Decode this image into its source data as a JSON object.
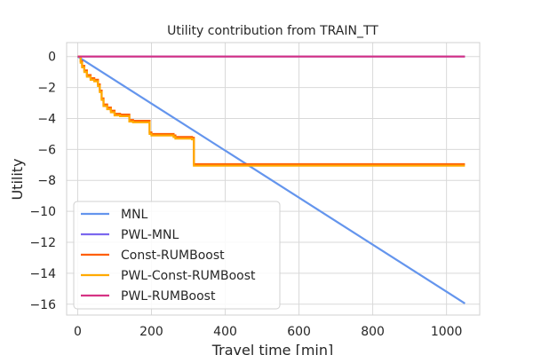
{
  "chart_data": {
    "type": "line",
    "title": "Utility contribution from TRAIN_TT",
    "xlabel": "Travel time [min]",
    "ylabel": "Utility",
    "xlim": [
      -30,
      1090
    ],
    "ylim": [
      -16.7,
      0.9
    ],
    "xticks": [
      0,
      200,
      400,
      600,
      800,
      1000
    ],
    "yticks": [
      0,
      -2,
      -4,
      -6,
      -8,
      -10,
      -12,
      -14,
      -16
    ],
    "xtick_labels": [
      "0",
      "200",
      "400",
      "600",
      "800",
      "1000"
    ],
    "ytick_labels": [
      "0",
      "−2",
      "−4",
      "−6",
      "−8",
      "−10",
      "−12",
      "−14",
      "−16"
    ],
    "grid": true,
    "legend_position": "bottom-left",
    "series": [
      {
        "name": "MNL",
        "color": "#6495ED",
        "step": false,
        "x": [
          0,
          1050
        ],
        "y": [
          0,
          -15.95
        ]
      },
      {
        "name": "PWL-MNL",
        "color": "#7B68EE",
        "step": false,
        "x": [
          0,
          1050
        ],
        "y": [
          0,
          0
        ]
      },
      {
        "name": "Const-RUMBoost",
        "color": "#FF5F00",
        "step": true,
        "x": [
          0,
          8,
          12,
          18,
          25,
          35,
          45,
          55,
          60,
          65,
          70,
          80,
          90,
          100,
          115,
          140,
          150,
          195,
          200,
          260,
          265,
          310,
          315,
          1050
        ],
        "y": [
          0,
          -0.3,
          -0.6,
          -0.9,
          -1.2,
          -1.4,
          -1.5,
          -1.8,
          -2.2,
          -2.7,
          -3.1,
          -3.3,
          -3.5,
          -3.7,
          -3.75,
          -4.1,
          -4.15,
          -4.9,
          -5.0,
          -5.1,
          -5.2,
          -5.25,
          -6.95,
          -6.95
        ]
      },
      {
        "name": "PWL-Const-RUMBoost",
        "color": "#FFAA00",
        "step": true,
        "x": [
          0,
          8,
          12,
          18,
          25,
          35,
          45,
          55,
          60,
          65,
          70,
          80,
          90,
          100,
          115,
          140,
          150,
          195,
          200,
          260,
          265,
          310,
          315,
          1050
        ],
        "y": [
          0,
          -0.4,
          -0.7,
          -1.0,
          -1.3,
          -1.5,
          -1.6,
          -1.9,
          -2.3,
          -2.8,
          -3.2,
          -3.4,
          -3.6,
          -3.8,
          -3.85,
          -4.2,
          -4.25,
          -5.0,
          -5.1,
          -5.2,
          -5.3,
          -5.35,
          -7.05,
          -7.05
        ]
      },
      {
        "name": "PWL-RUMBoost",
        "color": "#D63384",
        "step": false,
        "x": [
          0,
          1050
        ],
        "y": [
          0,
          0
        ]
      }
    ]
  }
}
